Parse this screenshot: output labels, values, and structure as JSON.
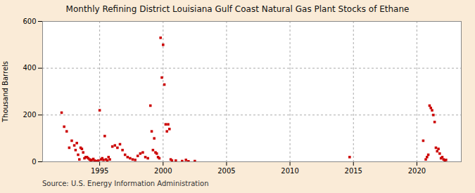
{
  "chart_data": {
    "type": "scatter",
    "title": "Monthly Refining District Louisiana Gulf Coast Natural Gas Plant Stocks of Ethane",
    "ylabel": "Thousand Barrels",
    "source": "Source: U.S. Energy Information Administration",
    "color": "#cc0000",
    "marker": "square",
    "grid": true,
    "xlim": [
      1990.5,
      2023.5
    ],
    "ylim": [
      0,
      600
    ],
    "xticks": [
      1995,
      2000,
      2005,
      2010,
      2015,
      2020
    ],
    "yticks": [
      0,
      200,
      400,
      600
    ],
    "x": [
      1992.0,
      1992.2,
      1992.4,
      1992.6,
      1992.8,
      1993.0,
      1993.1,
      1993.2,
      1993.3,
      1993.4,
      1993.5,
      1993.6,
      1993.7,
      1993.8,
      1993.9,
      1994.0,
      1994.1,
      1994.2,
      1994.3,
      1994.4,
      1994.5,
      1994.6,
      1994.7,
      1994.8,
      1994.9,
      1995.0,
      1995.1,
      1995.2,
      1995.3,
      1995.4,
      1995.5,
      1995.6,
      1995.7,
      1995.8,
      1996.0,
      1996.2,
      1996.4,
      1996.6,
      1996.8,
      1997.0,
      1997.2,
      1997.4,
      1997.6,
      1997.8,
      1998.0,
      1998.2,
      1998.4,
      1998.6,
      1998.8,
      1999.0,
      1999.1,
      1999.2,
      1999.3,
      1999.4,
      1999.5,
      1999.6,
      1999.7,
      1999.8,
      1999.9,
      2000.0,
      2000.1,
      2000.2,
      2000.3,
      2000.4,
      2000.5,
      2000.6,
      2000.7,
      2001.0,
      2001.5,
      2001.8,
      2002.0,
      2002.5,
      2014.7,
      2020.5,
      2020.7,
      2020.8,
      2020.9,
      2021.0,
      2021.1,
      2021.2,
      2021.3,
      2021.4,
      2021.5,
      2021.6,
      2021.7,
      2021.8,
      2021.9,
      2022.0,
      2022.1,
      2022.2,
      2022.3
    ],
    "values": [
      210,
      150,
      130,
      60,
      90,
      70,
      50,
      80,
      30,
      10,
      60,
      55,
      40,
      15,
      20,
      20,
      15,
      10,
      5,
      8,
      12,
      5,
      3,
      2,
      5,
      220,
      10,
      15,
      8,
      110,
      10,
      5,
      20,
      10,
      65,
      70,
      60,
      75,
      50,
      30,
      20,
      15,
      10,
      8,
      25,
      35,
      40,
      20,
      15,
      240,
      130,
      50,
      100,
      40,
      35,
      20,
      15,
      530,
      360,
      500,
      330,
      160,
      130,
      160,
      140,
      10,
      5,
      5,
      3,
      8,
      2,
      3,
      20,
      90,
      10,
      20,
      30,
      240,
      230,
      220,
      200,
      170,
      60,
      45,
      55,
      35,
      15,
      20,
      10,
      5,
      8
    ]
  }
}
